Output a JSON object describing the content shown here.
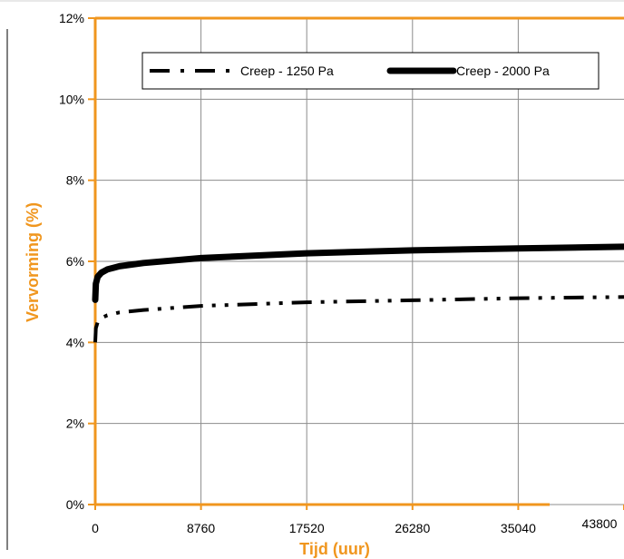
{
  "chart_data": {
    "type": "line",
    "xlabel": "Tijd (uur)",
    "ylabel": "Vervorming (%)",
    "xlim": [
      0,
      43800
    ],
    "ylim": [
      0,
      12
    ],
    "x_ticks": [
      0,
      8760,
      17520,
      26280,
      35040,
      43800
    ],
    "x_tick_labels": [
      "0",
      "8760",
      "17520",
      "26280",
      "35040",
      "43800"
    ],
    "y_ticks": [
      0,
      2,
      4,
      6,
      8,
      10,
      12
    ],
    "y_tick_labels": [
      "0%",
      "2%",
      "4%",
      "6%",
      "8%",
      "10%",
      "12%"
    ],
    "grid": true,
    "legend_position": "top",
    "accent_color": "#f0961e",
    "series": [
      {
        "name": "Creep - 1250 Pa",
        "style": "dash-dot-dot",
        "color": "#000000",
        "x": [
          0,
          50,
          200,
          500,
          1000,
          2000,
          4000,
          8760,
          17520,
          26280,
          35040,
          43800
        ],
        "y": [
          4.0,
          4.35,
          4.5,
          4.6,
          4.67,
          4.74,
          4.8,
          4.9,
          4.99,
          5.04,
          5.09,
          5.12
        ]
      },
      {
        "name": "Creep - 2000 Pa",
        "style": "solid",
        "color": "#000000",
        "x": [
          0,
          50,
          200,
          500,
          1000,
          2000,
          4000,
          8760,
          17520,
          26280,
          35040,
          43800
        ],
        "y": [
          5.05,
          5.45,
          5.62,
          5.72,
          5.8,
          5.88,
          5.96,
          6.08,
          6.2,
          6.27,
          6.32,
          6.36
        ]
      }
    ]
  }
}
